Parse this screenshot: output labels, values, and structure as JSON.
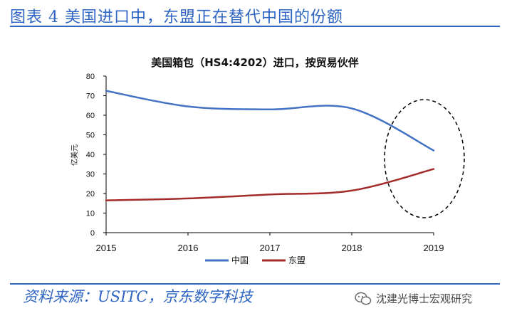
{
  "header": {
    "title": "图表 4 美国进口中，东盟正在替代中国的份额"
  },
  "footer": {
    "source": "资料来源：USITC，京东数字科技",
    "watermark": "沈建光博士宏观研究"
  },
  "colors": {
    "brand": "#2e64c2",
    "china": "#4472c4",
    "asean": "#a52a2a",
    "axis": "#000000",
    "ellipse": "#000000"
  },
  "icons": {
    "watermark": "wechat-official-account-icon"
  },
  "chart_data": {
    "type": "line",
    "title": "美国箱包（HS4:4202）进口，按贸易伙伴",
    "xlabel": "",
    "ylabel": "亿美元",
    "x": [
      "2015",
      "2016",
      "2017",
      "2018",
      "2019"
    ],
    "ylim": [
      0,
      80
    ],
    "yticks": [
      0,
      10,
      20,
      30,
      40,
      50,
      60,
      70,
      80
    ],
    "grid": false,
    "legend": "bottom",
    "series": [
      {
        "name": "中国",
        "values": [
          72.5,
          64.5,
          63,
          63.5,
          42
        ],
        "color": "#4472c4"
      },
      {
        "name": "东盟",
        "values": [
          16.5,
          17.5,
          19.5,
          21.5,
          32.5
        ],
        "color": "#a52a2a"
      }
    ],
    "annotation": "dashed-ellipse-around-2019"
  }
}
